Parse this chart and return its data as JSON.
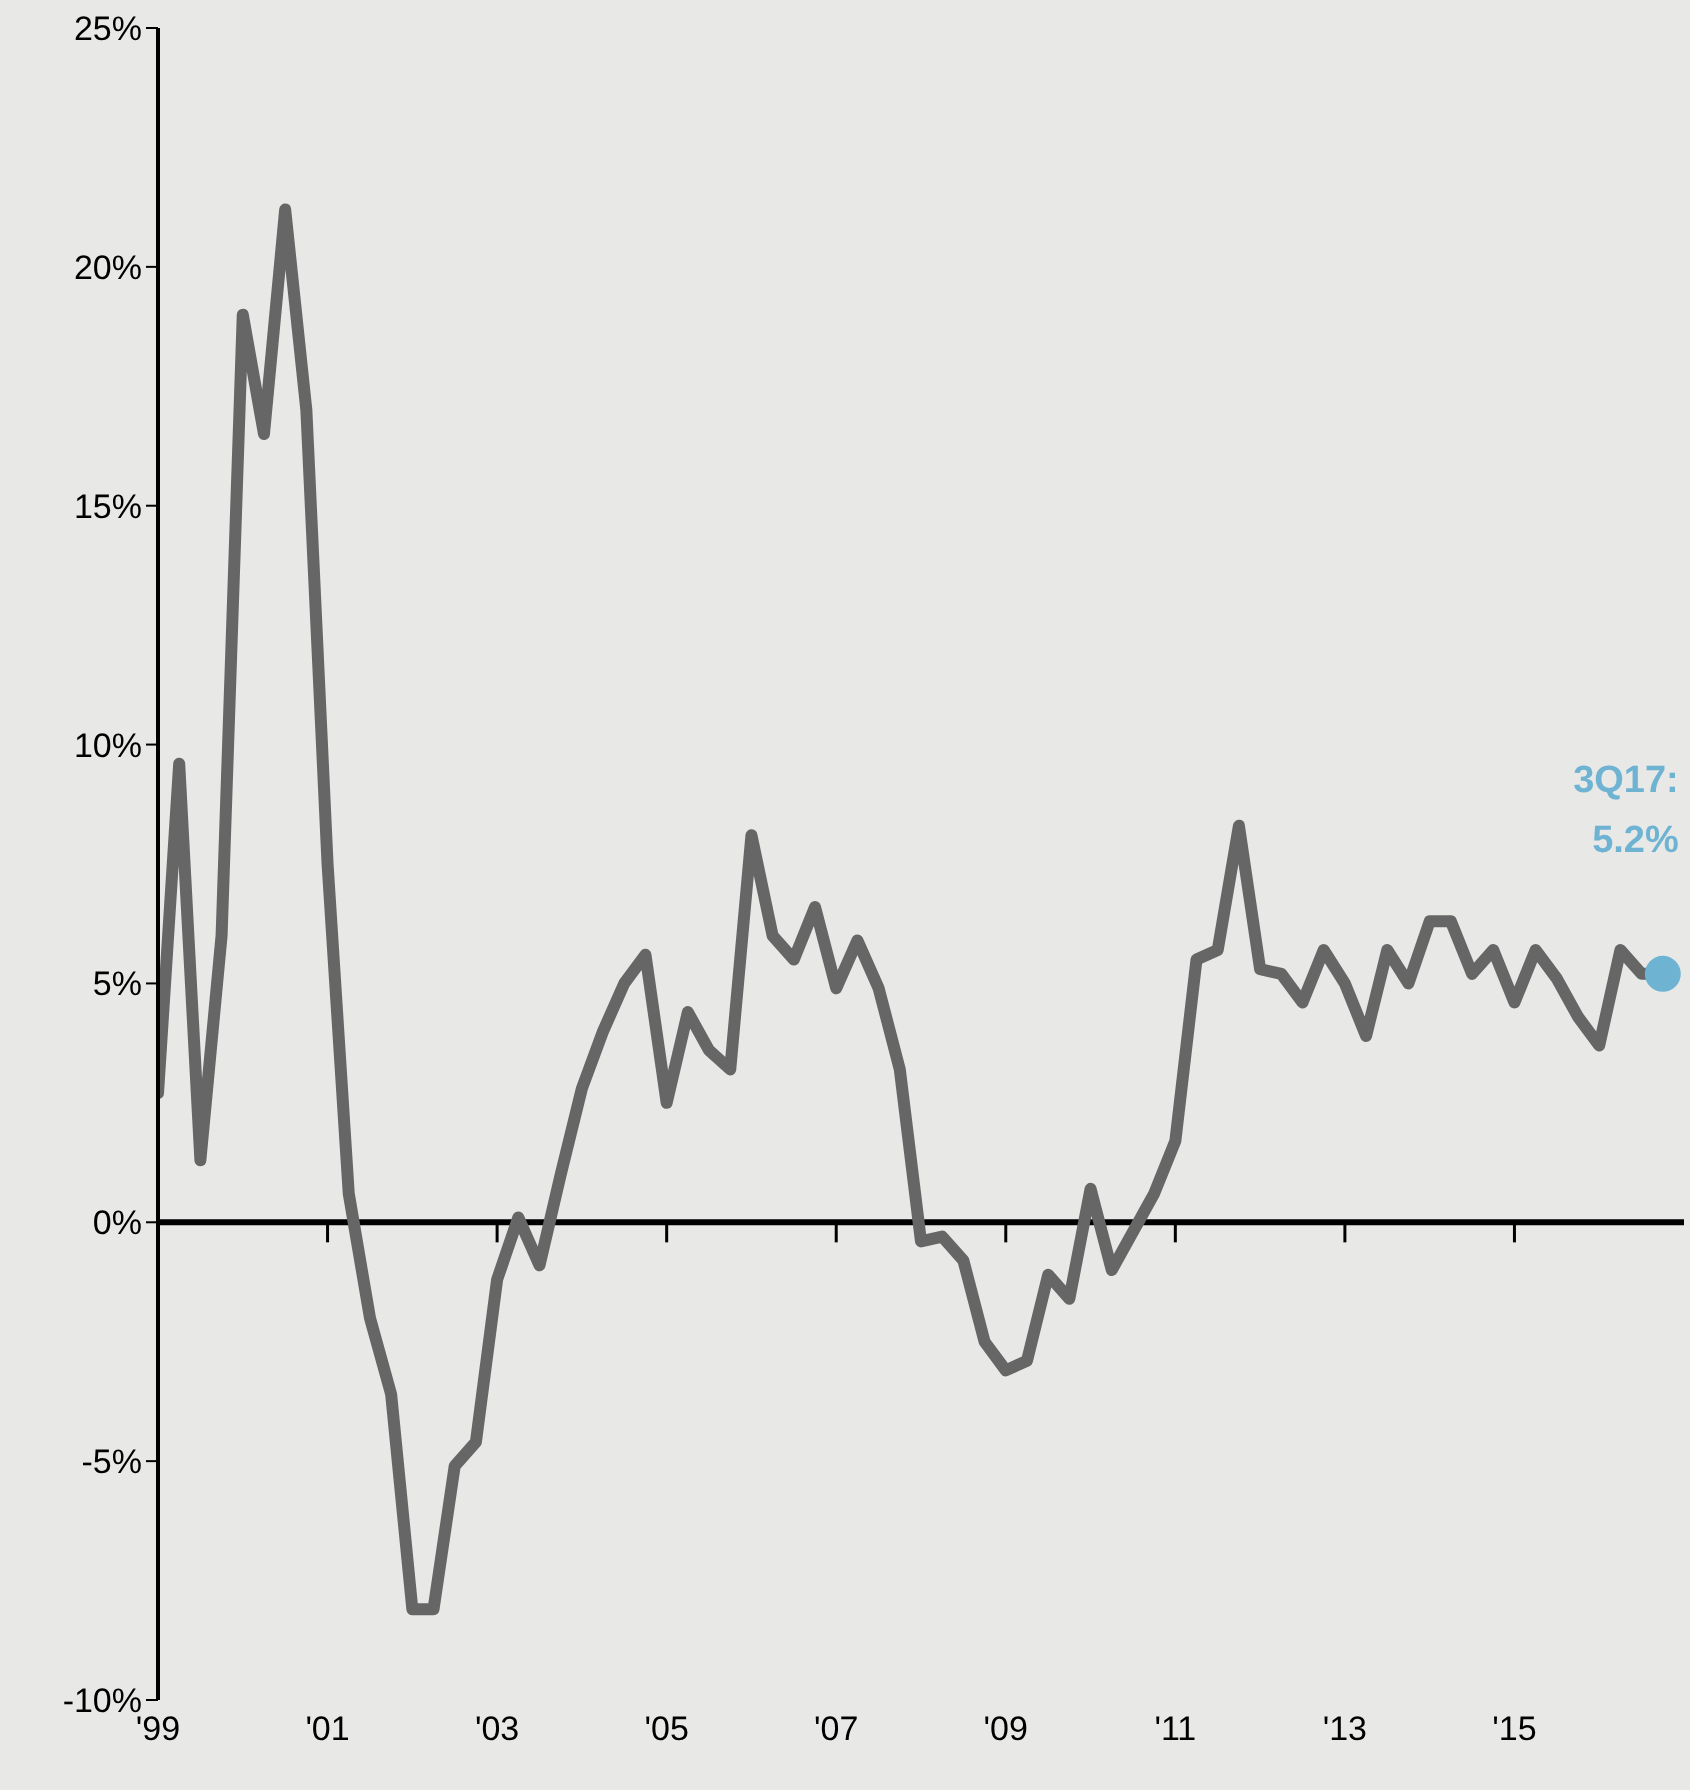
{
  "chart_data": {
    "type": "line",
    "x": [
      1999,
      1999.25,
      1999.5,
      1999.75,
      2000,
      2000.25,
      2000.5,
      2000.75,
      2001,
      2001.25,
      2001.5,
      2001.75,
      2002,
      2002.25,
      2002.5,
      2002.75,
      2003,
      2003.25,
      2003.5,
      2003.75,
      2004,
      2004.25,
      2004.5,
      2004.75,
      2005,
      2005.25,
      2005.5,
      2005.75,
      2006,
      2006.25,
      2006.5,
      2006.75,
      2007,
      2007.25,
      2007.5,
      2007.75,
      2008,
      2008.25,
      2008.5,
      2008.75,
      2009,
      2009.25,
      2009.5,
      2009.75,
      2010,
      2010.25,
      2010.5,
      2010.75,
      2011,
      2011.25,
      2011.5,
      2011.75,
      2012,
      2012.25,
      2012.5,
      2012.75,
      2013,
      2013.25,
      2013.5,
      2013.75,
      2014,
      2014.25,
      2014.5,
      2014.75,
      2015,
      2015.25,
      2015.5,
      2015.75,
      2016,
      2016.25,
      2016.5,
      2016.75
    ],
    "series": [
      {
        "color": "#666666",
        "values": [
          2.7,
          9.6,
          1.3,
          6,
          19,
          16.5,
          21.2,
          17,
          7.5,
          0.6,
          -2,
          -3.6,
          -8.1,
          -8.1,
          -5.1,
          -4.6,
          -1.2,
          0.1,
          -0.9,
          1,
          2.8,
          4,
          5,
          5.6,
          2.5,
          4.4,
          3.6,
          3.2,
          8.1,
          6,
          5.5,
          6.6,
          4.9,
          5.9,
          4.9,
          3.2,
          -0.4,
          -0.3,
          -0.8,
          -2.5,
          -3.1,
          -2.9,
          -1.1,
          -1.6,
          0.7,
          -1,
          -0.2,
          0.6,
          1.7,
          5.5,
          5.7,
          8.3,
          5.3,
          5.2,
          4.6,
          5.7,
          5,
          3.9,
          5.7,
          5,
          6.3,
          6.3,
          5.2,
          5.7,
          4.6,
          5.7,
          5.1,
          4.3,
          3.7,
          5.7,
          5.2,
          5.2
        ]
      }
    ],
    "xlim": [
      1999,
      2017
    ],
    "xticks": [
      {
        "value": 1999,
        "label": "'99"
      },
      {
        "value": 2001,
        "label": "'01"
      },
      {
        "value": 2003,
        "label": "'03"
      },
      {
        "value": 2005,
        "label": "'05"
      },
      {
        "value": 2007,
        "label": "'07"
      },
      {
        "value": 2009,
        "label": "'09"
      },
      {
        "value": 2011,
        "label": "'11"
      },
      {
        "value": 2013,
        "label": "'13"
      },
      {
        "value": 2015,
        "label": "'15"
      }
    ],
    "ylim": [
      -10,
      25
    ],
    "yticks": [
      {
        "value": -10,
        "label": "-10%"
      },
      {
        "value": -5,
        "label": "-5%"
      },
      {
        "value": 0,
        "label": "0%"
      },
      {
        "value": 5,
        "label": "5%"
      },
      {
        "value": 10,
        "label": "10%"
      },
      {
        "value": 15,
        "label": "15%"
      },
      {
        "value": 20,
        "label": "20%"
      },
      {
        "value": 25,
        "label": "25%"
      }
    ],
    "ref_lines": [
      {
        "axis": "y",
        "value": 0,
        "color": "#000000"
      }
    ],
    "annotations": [
      {
        "text": "3Q17: 5.2%",
        "x": 2016.75,
        "y": 5.2
      }
    ],
    "grid": false,
    "legend": false,
    "marker": "none",
    "line_style": "solid"
  }
}
